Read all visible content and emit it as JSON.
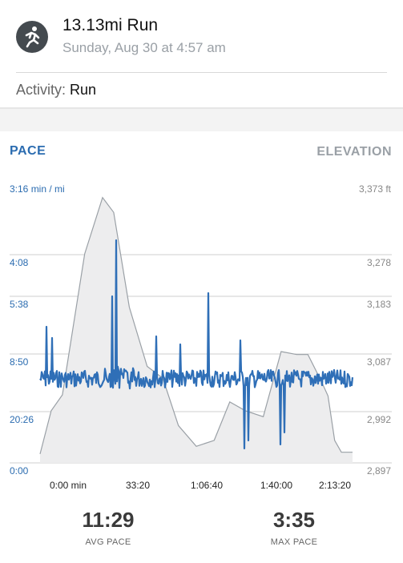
{
  "header": {
    "title": "13.13mi Run",
    "subtitle": "Sunday, Aug 30 at 4:57 am",
    "icon": "running-person-icon"
  },
  "activity": {
    "label": "Activity:",
    "value": "Run"
  },
  "tabs": {
    "pace": "PACE",
    "elevation": "ELEVATION"
  },
  "chart_data": {
    "type": "line",
    "x_ticks": [
      "0:00 min",
      "33:20",
      "1:06:40",
      "1:40:00",
      "2:13:20"
    ],
    "pace_axis": {
      "label": "min / mi",
      "ticks": [
        "3:16 min / mi",
        "4:08",
        "5:38",
        "8:50",
        "20:26",
        "0:00"
      ]
    },
    "elevation_axis": {
      "unit": "ft",
      "ticks": [
        "3,373 ft",
        "3,278",
        "3,183",
        "3,087",
        "2,992",
        "2,897"
      ]
    },
    "series": [
      {
        "name": "PACE",
        "color": "#2f6fb7",
        "axis": "pace"
      },
      {
        "name": "ELEVATION",
        "color": "#9aa0a6",
        "axis": "elevation",
        "x_minutes": [
          0,
          5,
          10,
          20,
          28,
          33,
          40,
          48,
          55,
          62,
          70,
          78,
          85,
          92,
          100,
          108,
          115,
          120,
          126,
          129,
          132,
          135,
          140
        ],
        "elevation_ft": [
          2912,
          2985,
          3012,
          3250,
          3345,
          3320,
          3160,
          3060,
          3040,
          2960,
          2925,
          2935,
          3000,
          2985,
          2975,
          3085,
          3080,
          3080,
          3035,
          3010,
          2935,
          2915,
          2915
        ]
      }
    ],
    "grid": true
  },
  "stats": {
    "avg": {
      "value": "11:29",
      "label": "AVG PACE"
    },
    "max": {
      "value": "3:35",
      "label": "MAX PACE"
    }
  }
}
